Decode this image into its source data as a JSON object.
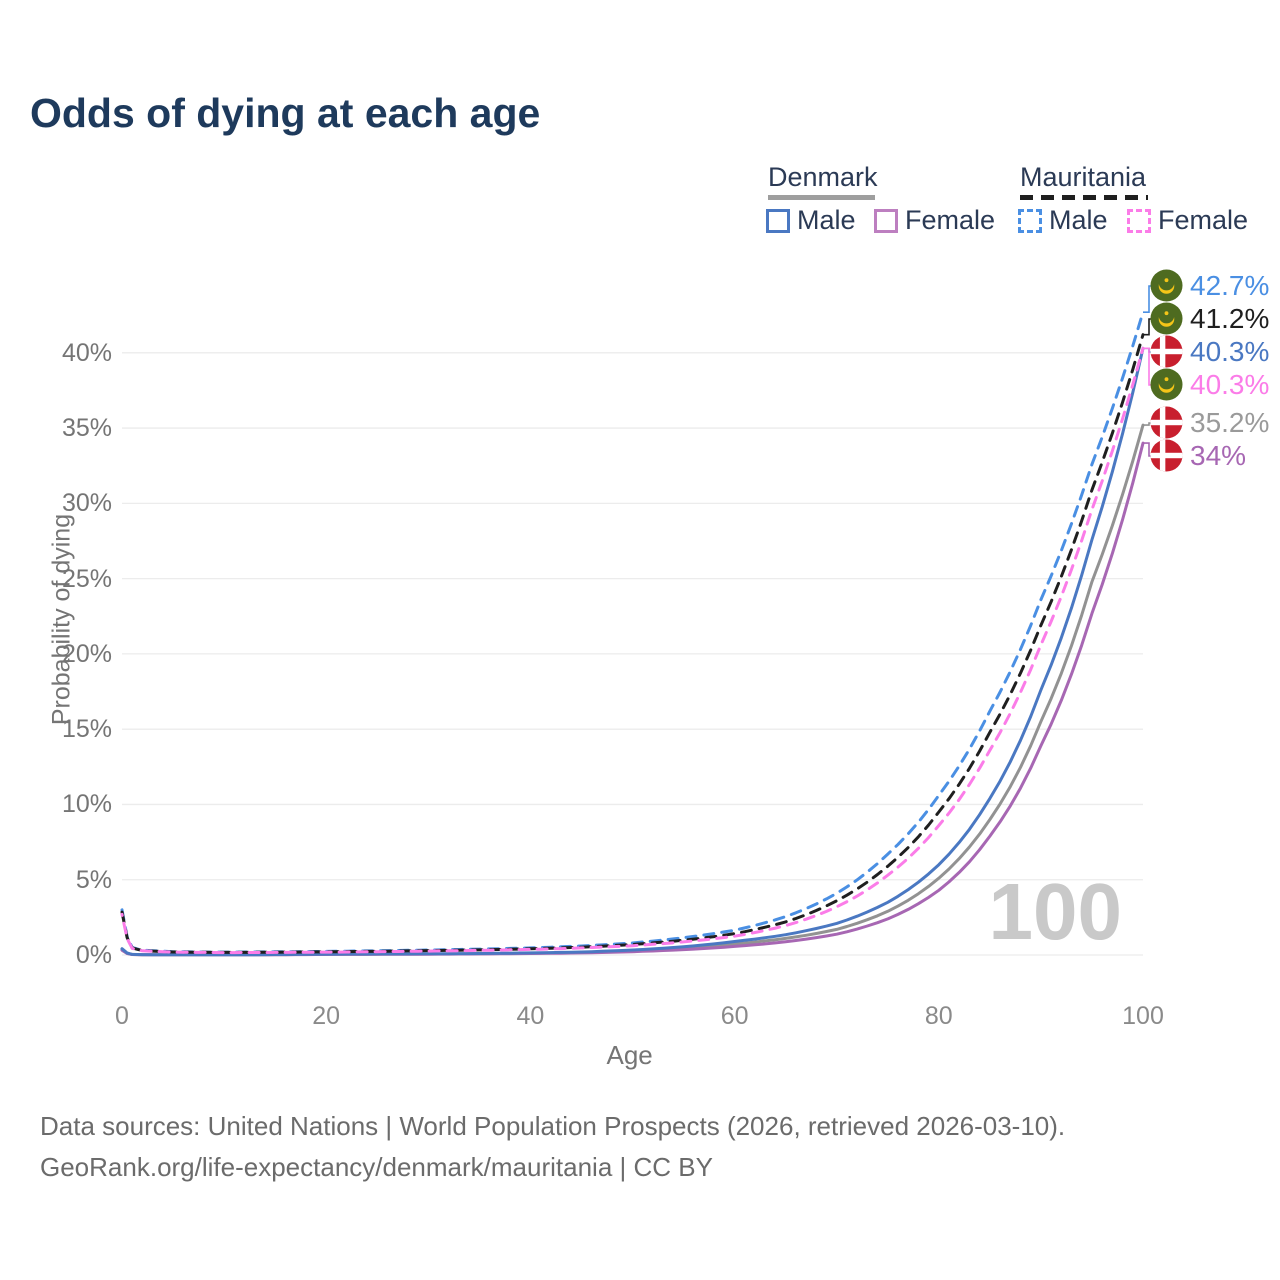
{
  "title": "Odds of dying at each age",
  "legend": {
    "groups": [
      {
        "label": "Denmark",
        "header_swatch_color": "#9e9e9e",
        "dashed": false,
        "items": [
          {
            "label": "Male",
            "color": "#4a78c2"
          },
          {
            "label": "Female",
            "color": "#bd7fc0"
          }
        ]
      },
      {
        "label": "Mauritania",
        "header_swatch_color": "#1f1f1f",
        "dashed": true,
        "items": [
          {
            "label": "Male",
            "color": "#4a8fe3"
          },
          {
            "label": "Female",
            "color": "#fb7ce8"
          }
        ]
      }
    ]
  },
  "watermark": "100",
  "footer": {
    "line1": "Data sources: United Nations | World Population Prospects (2026, retrieved 2026-03-10).",
    "line2": "GeoRank.org/life-expectancy/denmark/mauritania | CC BY"
  },
  "chart_data": {
    "type": "line",
    "title": "Odds of dying at each age",
    "xlabel": "Age",
    "ylabel": "Probability of dying",
    "xlim": [
      0,
      100
    ],
    "ylim_pct": [
      0,
      45
    ],
    "grid": "horizontal",
    "legend_position": "top-right",
    "xticks": [
      0,
      20,
      40,
      60,
      80,
      100
    ],
    "ytick_values": [
      0,
      5,
      10,
      15,
      20,
      25,
      30,
      35,
      40
    ],
    "ytick_labels": [
      "0%",
      "5%",
      "10%",
      "15%",
      "20%",
      "25%",
      "30%",
      "35%",
      "40%"
    ],
    "x_ages": [
      0,
      1,
      2,
      5,
      10,
      15,
      20,
      25,
      30,
      35,
      40,
      45,
      50,
      55,
      60,
      65,
      70,
      75,
      80,
      85,
      90,
      95,
      100
    ],
    "series": [
      {
        "name": "Denmark Both sexes",
        "country": "Denmark",
        "sex": "both",
        "color": "#929292",
        "dashed": false,
        "values": [
          0.37,
          0.035,
          0.022,
          0.013,
          0.011,
          0.025,
          0.045,
          0.055,
          0.065,
          0.085,
          0.12,
          0.17,
          0.27,
          0.45,
          0.73,
          1.1,
          1.7,
          2.9,
          5.1,
          9.0,
          15.5,
          24.8,
          35.2
        ],
        "end_label": "35.2%",
        "label_color": "#9a9a9a",
        "flag": "denmark",
        "label_row": 4
      },
      {
        "name": "Denmark Female",
        "country": "Denmark",
        "sex": "female",
        "color": "#a767b3",
        "dashed": false,
        "values": [
          0.32,
          0.03,
          0.02,
          0.012,
          0.01,
          0.02,
          0.035,
          0.045,
          0.055,
          0.07,
          0.1,
          0.14,
          0.22,
          0.36,
          0.57,
          0.88,
          1.38,
          2.4,
          4.3,
          7.9,
          13.9,
          22.7,
          34.0
        ],
        "end_label": "34%",
        "label_color": "#a767b3",
        "flag": "denmark",
        "label_row": 5
      },
      {
        "name": "Denmark Male",
        "country": "Denmark",
        "sex": "male",
        "color": "#4a78c2",
        "dashed": false,
        "values": [
          0.42,
          0.04,
          0.025,
          0.015,
          0.012,
          0.03,
          0.06,
          0.07,
          0.08,
          0.1,
          0.14,
          0.2,
          0.33,
          0.55,
          0.9,
          1.35,
          2.1,
          3.5,
          6.0,
          10.4,
          17.6,
          27.6,
          40.3
        ],
        "end_label": "40.3%",
        "label_color": "#4a78c2",
        "flag": "denmark",
        "label_row": 2
      },
      {
        "name": "Mauritania Male",
        "country": "Mauritania",
        "sex": "male",
        "color": "#4a8fe3",
        "dashed": true,
        "values": [
          3.0,
          0.5,
          0.32,
          0.22,
          0.19,
          0.21,
          0.24,
          0.28,
          0.33,
          0.39,
          0.47,
          0.6,
          0.8,
          1.15,
          1.65,
          2.55,
          4.1,
          6.7,
          10.6,
          16.2,
          23.6,
          32.6,
          42.7
        ],
        "end_label": "42.7%",
        "label_color": "#4a8fe3",
        "flag": "mauritania",
        "label_row": 0
      },
      {
        "name": "Mauritania Both sexes",
        "country": "Mauritania",
        "sex": "both",
        "color": "#1f1f1f",
        "dashed": true,
        "values": [
          2.85,
          0.47,
          0.3,
          0.2,
          0.17,
          0.185,
          0.21,
          0.245,
          0.29,
          0.34,
          0.41,
          0.52,
          0.7,
          0.98,
          1.42,
          2.2,
          3.6,
          5.9,
          9.5,
          14.8,
          21.9,
          30.9,
          41.2
        ],
        "end_label": "41.2%",
        "label_color": "#1f1f1f",
        "flag": "mauritania",
        "label_row": 1
      },
      {
        "name": "Mauritania Female",
        "country": "Mauritania",
        "sex": "female",
        "color": "#fb7ce8",
        "dashed": true,
        "values": [
          2.7,
          0.44,
          0.28,
          0.19,
          0.16,
          0.17,
          0.19,
          0.22,
          0.26,
          0.31,
          0.37,
          0.47,
          0.62,
          0.87,
          1.25,
          1.95,
          3.2,
          5.3,
          8.6,
          13.6,
          20.6,
          29.6,
          40.3
        ],
        "end_label": "40.3%",
        "label_color": "#fb7ce8",
        "flag": "mauritania",
        "label_row": 3
      }
    ],
    "flag_colors": {
      "denmark_red": "#c81f2e",
      "denmark_cross": "#ffffff",
      "mauritania_green": "#4e6b20",
      "mauritania_yellow": "#f5c518"
    }
  }
}
